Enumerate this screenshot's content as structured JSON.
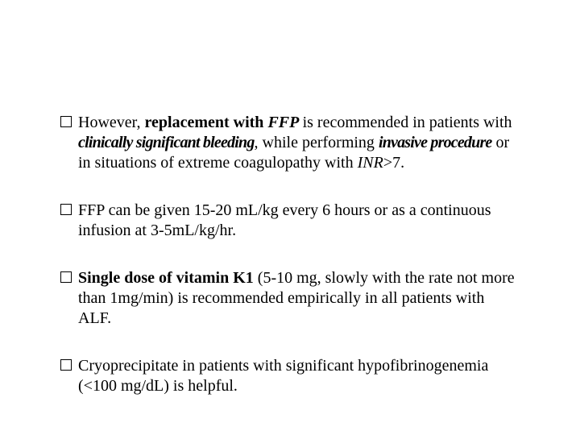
{
  "items": [
    {
      "segments": [
        {
          "t": "However, ",
          "cls": ""
        },
        {
          "t": "replacement with ",
          "cls": "bold"
        },
        {
          "t": "FFP ",
          "cls": "bolditalic"
        },
        {
          "t": "is recommended in patients with ",
          "cls": ""
        },
        {
          "t": "clinically significant bleeding",
          "cls": "bolditalic cond"
        },
        {
          "t": ", while performing ",
          "cls": ""
        },
        {
          "t": "invasive procedure",
          "cls": "bolditalic cond"
        },
        {
          "t": " or in situations of extreme coagulopathy with ",
          "cls": ""
        },
        {
          "t": "INR",
          "cls": "italic"
        },
        {
          "t": ">7.",
          "cls": ""
        }
      ]
    },
    {
      "segments": [
        {
          "t": "FFP can be given 15-20 mL/kg every 6 hours or as a continuous infusion at 3-5mL/kg/hr.",
          "cls": ""
        }
      ]
    },
    {
      "segments": [
        {
          "t": "Single dose of vitamin K1 ",
          "cls": "bold"
        },
        {
          "t": "(5-10 mg, slowly with the rate not more than 1mg/min) is recommended empirically in all patients with ALF.",
          "cls": ""
        }
      ]
    },
    {
      "segments": [
        {
          "t": "Cryoprecipitate in patients with significant hypofibrinogenemia (<100 mg/dL) is helpful.",
          "cls": ""
        }
      ]
    }
  ]
}
